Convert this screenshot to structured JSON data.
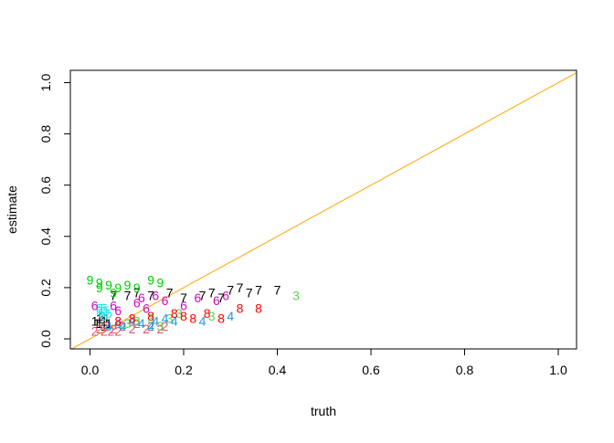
{
  "chart_data": {
    "type": "scatter",
    "xlabel": "truth",
    "ylabel": "estimate",
    "xlim": [
      0,
      1
    ],
    "ylim": [
      0,
      1
    ],
    "x_ticks": [
      "0.0",
      "0.2",
      "0.4",
      "0.6",
      "0.8",
      "1.0"
    ],
    "y_ticks": [
      "0.0",
      "0.2",
      "0.4",
      "0.6",
      "0.8",
      "1.0"
    ],
    "grid": false,
    "reference_line": {
      "from": [
        0,
        0
      ],
      "to": [
        1,
        1
      ],
      "color": "#FFA500"
    },
    "series": [
      {
        "label": "1",
        "color": "#000000",
        "points": [
          [
            0.01,
            0.07
          ],
          [
            0.015,
            0.06
          ],
          [
            0.02,
            0.08
          ],
          [
            0.02,
            0.06
          ],
          [
            0.025,
            0.09
          ],
          [
            0.03,
            0.07
          ],
          [
            0.03,
            0.05
          ],
          [
            0.035,
            0.08
          ],
          [
            0.04,
            0.06
          ]
        ]
      },
      {
        "label": "2",
        "color": "#DF536B",
        "points": [
          [
            0.01,
            0.03
          ],
          [
            0.02,
            0.04
          ],
          [
            0.03,
            0.03
          ],
          [
            0.035,
            0.05
          ],
          [
            0.045,
            0.03
          ],
          [
            0.05,
            0.04
          ],
          [
            0.06,
            0.03
          ],
          [
            0.07,
            0.05
          ],
          [
            0.09,
            0.04
          ],
          [
            0.1,
            0.06
          ],
          [
            0.12,
            0.04
          ],
          [
            0.13,
            0.05
          ],
          [
            0.15,
            0.04
          ],
          [
            0.16,
            0.05
          ]
        ]
      },
      {
        "label": "3",
        "color": "#61D04F",
        "points": [
          [
            0.08,
            0.06
          ],
          [
            0.1,
            0.07
          ],
          [
            0.13,
            0.08
          ],
          [
            0.15,
            0.05
          ],
          [
            0.17,
            0.08
          ],
          [
            0.19,
            0.1
          ],
          [
            0.26,
            0.09
          ],
          [
            0.44,
            0.17
          ]
        ]
      },
      {
        "label": "4",
        "color": "#2297E6",
        "points": [
          [
            0.04,
            0.05
          ],
          [
            0.06,
            0.06
          ],
          [
            0.07,
            0.05
          ],
          [
            0.09,
            0.07
          ],
          [
            0.11,
            0.06
          ],
          [
            0.13,
            0.05
          ],
          [
            0.14,
            0.07
          ],
          [
            0.16,
            0.08
          ],
          [
            0.18,
            0.07
          ],
          [
            0.24,
            0.07
          ],
          [
            0.3,
            0.09
          ]
        ]
      },
      {
        "label": "5",
        "color": "#28E2E5",
        "points": [
          [
            0.02,
            0.11
          ],
          [
            0.025,
            0.1
          ],
          [
            0.03,
            0.12
          ],
          [
            0.035,
            0.11
          ],
          [
            0.04,
            0.1
          ],
          [
            0.03,
            0.09
          ],
          [
            0.02,
            0.12
          ]
        ]
      },
      {
        "label": "6",
        "color": "#CD0BBC",
        "points": [
          [
            0.01,
            0.13
          ],
          [
            0.05,
            0.13
          ],
          [
            0.06,
            0.11
          ],
          [
            0.1,
            0.14
          ],
          [
            0.11,
            0.16
          ],
          [
            0.12,
            0.12
          ],
          [
            0.14,
            0.17
          ],
          [
            0.16,
            0.15
          ],
          [
            0.2,
            0.13
          ],
          [
            0.23,
            0.16
          ],
          [
            0.27,
            0.15
          ],
          [
            0.29,
            0.17
          ]
        ]
      },
      {
        "label": "7",
        "color": "#000000",
        "points": [
          [
            0.05,
            0.17
          ],
          [
            0.08,
            0.17
          ],
          [
            0.1,
            0.18
          ],
          [
            0.13,
            0.17
          ],
          [
            0.17,
            0.18
          ],
          [
            0.2,
            0.16
          ],
          [
            0.24,
            0.17
          ],
          [
            0.26,
            0.18
          ],
          [
            0.28,
            0.16
          ],
          [
            0.3,
            0.19
          ],
          [
            0.32,
            0.2
          ],
          [
            0.34,
            0.18
          ],
          [
            0.36,
            0.19
          ],
          [
            0.4,
            0.19
          ]
        ]
      },
      {
        "label": "8",
        "color": "#FF0000",
        "points": [
          [
            0.06,
            0.07
          ],
          [
            0.09,
            0.08
          ],
          [
            0.13,
            0.09
          ],
          [
            0.18,
            0.1
          ],
          [
            0.2,
            0.09
          ],
          [
            0.22,
            0.08
          ],
          [
            0.25,
            0.1
          ],
          [
            0.28,
            0.08
          ],
          [
            0.32,
            0.12
          ],
          [
            0.36,
            0.12
          ]
        ]
      },
      {
        "label": "9",
        "color": "#00CD00",
        "points": [
          [
            0.0,
            0.23
          ],
          [
            0.02,
            0.2
          ],
          [
            0.04,
            0.21
          ],
          [
            0.06,
            0.2
          ],
          [
            0.08,
            0.21
          ],
          [
            0.1,
            0.2
          ],
          [
            0.13,
            0.23
          ],
          [
            0.15,
            0.22
          ],
          [
            0.05,
            0.18
          ],
          [
            0.02,
            0.22
          ]
        ]
      }
    ]
  }
}
